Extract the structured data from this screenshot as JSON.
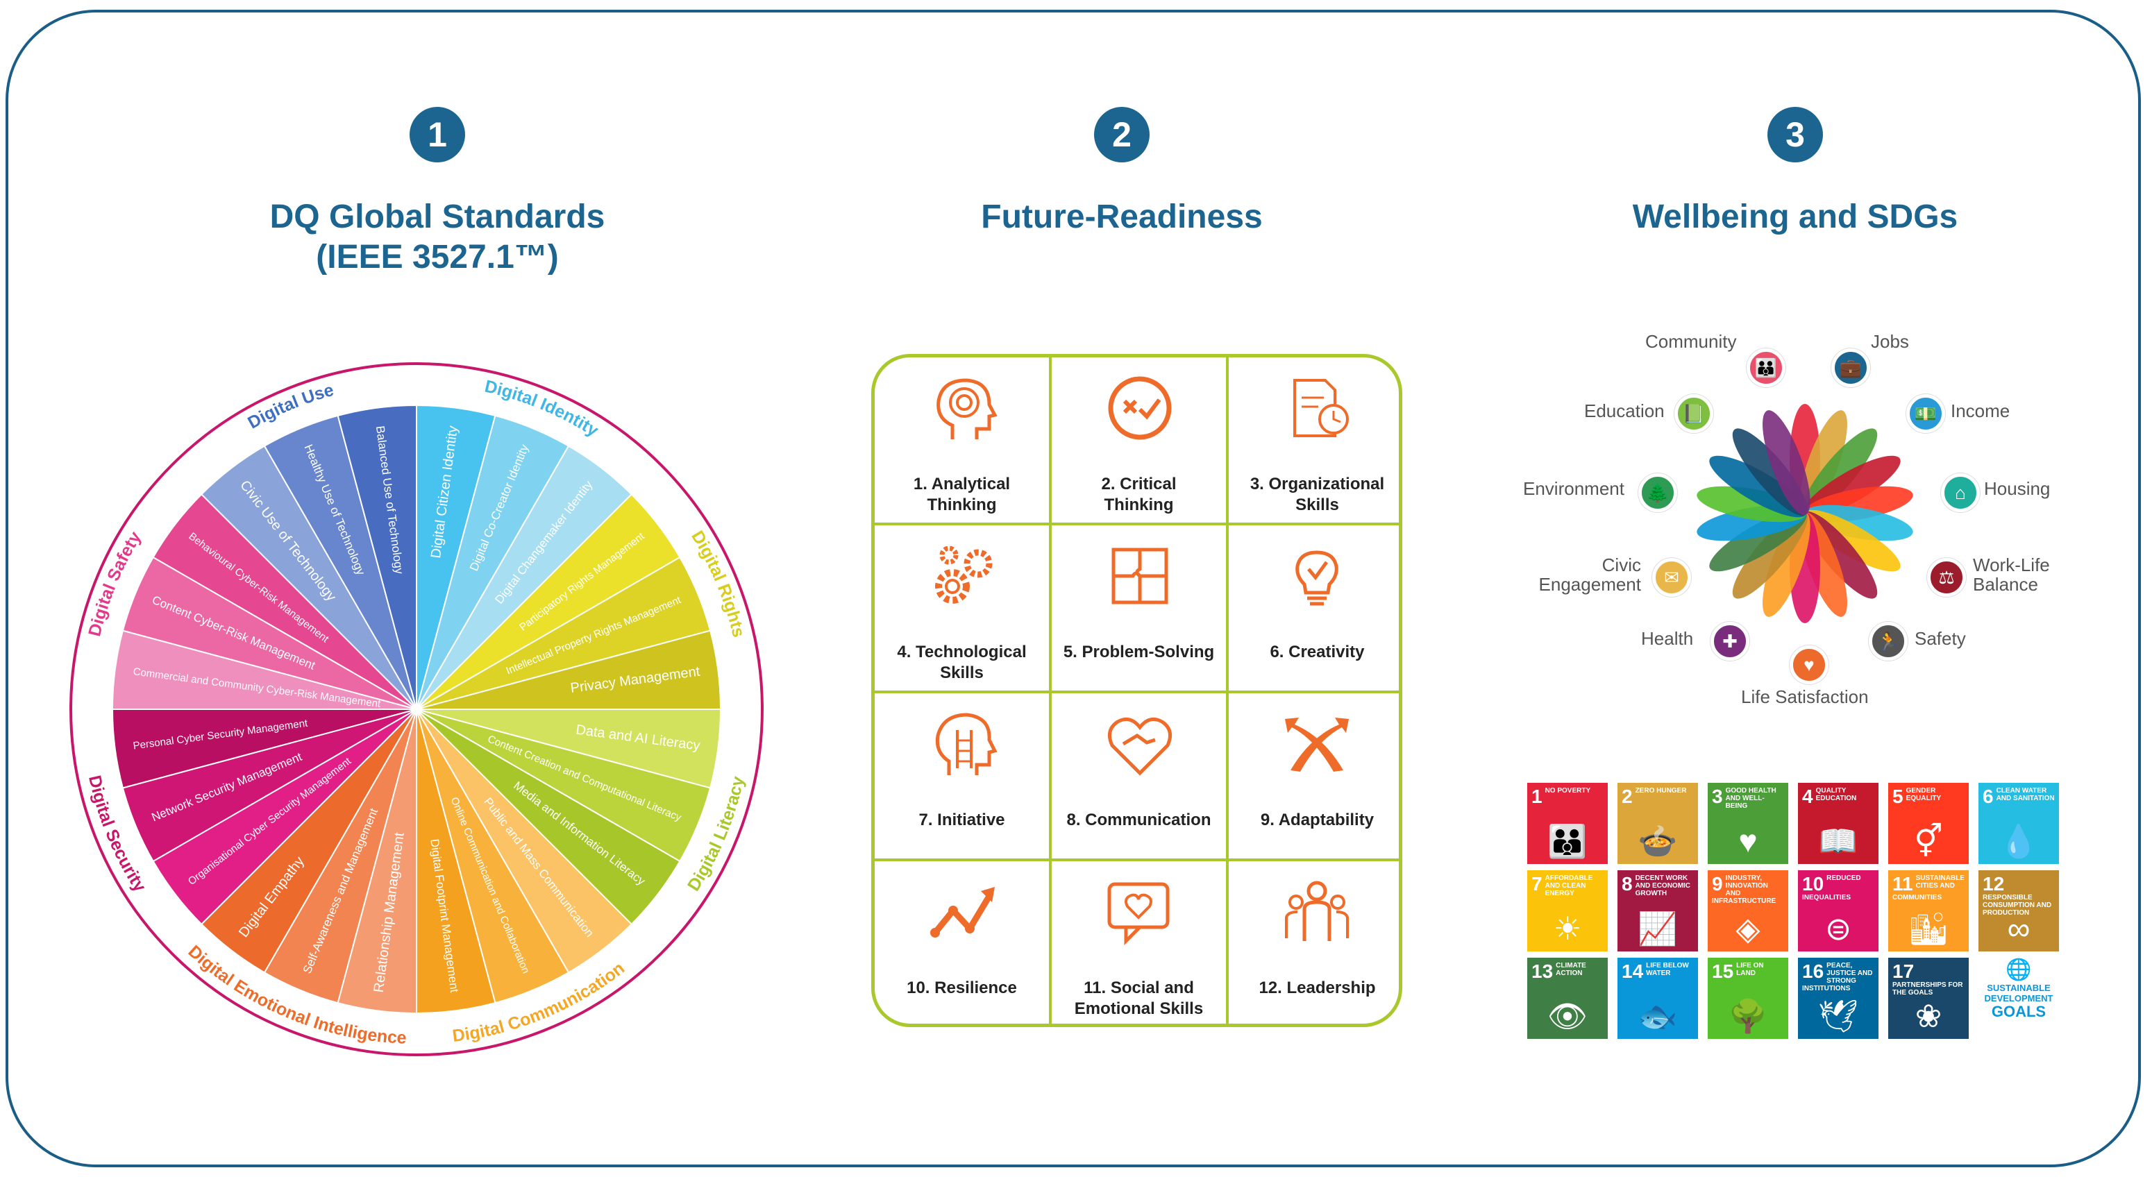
{
  "sections": [
    {
      "number": "1",
      "title_line1": "DQ Global Standards",
      "title_line2": "(IEEE 3527.1™)"
    },
    {
      "number": "2",
      "title_line1": "Future-Readiness",
      "title_line2": ""
    },
    {
      "number": "3",
      "title_line1": "Wellbeing and SDGs",
      "title_line2": ""
    }
  ],
  "wheel": {
    "categories": [
      {
        "name": "Digital Identity",
        "color": "#3fb6e6"
      },
      {
        "name": "Digital Rights",
        "color": "#d8cc1e"
      },
      {
        "name": "Digital Literacy",
        "color": "#a8c82b"
      },
      {
        "name": "Digital Communication",
        "color": "#f3a725"
      },
      {
        "name": "Digital Emotional Intelligence",
        "color": "#ee6b2a"
      },
      {
        "name": "Digital Security",
        "color": "#c8166a"
      },
      {
        "name": "Digital Safety",
        "color": "#e2398a"
      },
      {
        "name": "Digital Use",
        "color": "#3c6fbf"
      }
    ],
    "segments": [
      {
        "label": "Digital Citizen Identity",
        "color": "#48c3ef"
      },
      {
        "label": "Digital Co-Creator Identity",
        "color": "#7fd2f0"
      },
      {
        "label": "Digital Changemaker Identity",
        "color": "#a7def2"
      },
      {
        "label": "Participatory Rights Management",
        "color": "#ebe12a"
      },
      {
        "label": "Intellectual Property Rights Management",
        "color": "#ddd326"
      },
      {
        "label": "Privacy Management",
        "color": "#cfc41f"
      },
      {
        "label": "Data and AI Literacy",
        "color": "#d3e25c"
      },
      {
        "label": "Content Creation and Computational Literacy",
        "color": "#bcd43b"
      },
      {
        "label": "Media and Information Literacy",
        "color": "#a6c62a"
      },
      {
        "label": "Public and Mass Communication",
        "color": "#fbc266"
      },
      {
        "label": "Online Communication and Collaboration",
        "color": "#f8b13a"
      },
      {
        "label": "Digital Footprint Management",
        "color": "#f3a11f"
      },
      {
        "label": "Relationship Management",
        "color": "#f59b72"
      },
      {
        "label": "Self-Awareness and Management",
        "color": "#f18450"
      },
      {
        "label": "Digital Empathy",
        "color": "#ec6a2c"
      },
      {
        "label": "Organisational Cyber Security Management",
        "color": "#e11f86"
      },
      {
        "label": "Network Security Management",
        "color": "#cf1675"
      },
      {
        "label": "Personal Cyber Security Management",
        "color": "#b80f62"
      },
      {
        "label": "Commercial and Community Cyber-Risk Management",
        "color": "#ef8fbd"
      },
      {
        "label": "Content Cyber-Risk Management",
        "color": "#eb68a4"
      },
      {
        "label": "Behavioural Cyber-Risk Management",
        "color": "#e54790"
      },
      {
        "label": "Civic Use of Technology",
        "color": "#8aa3d9"
      },
      {
        "label": "Healthy Use of Technology",
        "color": "#6786cd"
      },
      {
        "label": "Balanced Use of Technology",
        "color": "#476cc0"
      }
    ]
  },
  "skills": [
    {
      "line1": "1. Analytical",
      "line2": "Thinking",
      "icon": "head-maze-icon"
    },
    {
      "line1": "2. Critical",
      "line2": "Thinking",
      "icon": "check-cross-icon"
    },
    {
      "line1": "3. Organizational",
      "line2": "Skills",
      "icon": "document-clock-icon"
    },
    {
      "line1": "4. Technological",
      "line2": "Skills",
      "icon": "gears-icon"
    },
    {
      "line1": "5. Problem-Solving",
      "line2": "",
      "icon": "puzzle-icon"
    },
    {
      "line1": "6. Creativity",
      "line2": "",
      "icon": "lightbulb-icon"
    },
    {
      "line1": "7. Initiative",
      "line2": "",
      "icon": "head-ladder-icon"
    },
    {
      "line1": "8. Communication",
      "line2": "",
      "icon": "handshake-heart-icon"
    },
    {
      "line1": "9. Adaptability",
      "line2": "",
      "icon": "crossing-arrows-icon"
    },
    {
      "line1": "10. Resilience",
      "line2": "",
      "icon": "rising-line-icon"
    },
    {
      "line1": "11. Social and",
      "line2": "Emotional Skills",
      "icon": "speech-heart-icon"
    },
    {
      "line1": "12. Leadership",
      "line2": "",
      "icon": "group-icon"
    }
  ],
  "wellbeing": [
    {
      "label": "Community",
      "color": "#e8506b",
      "glyph": "👪"
    },
    {
      "label": "Jobs",
      "color": "#1b6590",
      "glyph": "💼"
    },
    {
      "label": "Education",
      "color": "#7fbf3f",
      "glyph": "📗"
    },
    {
      "label": "Income",
      "color": "#2a9ad6",
      "glyph": "💵"
    },
    {
      "label": "Environment",
      "color": "#2e9b54",
      "glyph": "🌲"
    },
    {
      "label": "Housing",
      "color": "#1fae9b",
      "glyph": "⌂"
    },
    {
      "label": "Civic\nEngagement",
      "color": "#e9b64a",
      "glyph": "✉"
    },
    {
      "label": "Work-Life\nBalance",
      "color": "#9b1c2a",
      "glyph": "⚖"
    },
    {
      "label": "Health",
      "color": "#7a2d7d",
      "glyph": "✚"
    },
    {
      "label": "Safety",
      "color": "#555555",
      "glyph": "🏃"
    },
    {
      "label": "Life Satisfaction",
      "color": "#ec6a2c",
      "glyph": "♥"
    }
  ],
  "sdgs": [
    {
      "n": "1",
      "t": "No Poverty",
      "color": "#e5243b",
      "g": "👪"
    },
    {
      "n": "2",
      "t": "Zero Hunger",
      "color": "#dda63a",
      "g": "🍲"
    },
    {
      "n": "3",
      "t": "Good Health and Well-Being",
      "color": "#4c9f38",
      "g": "♥"
    },
    {
      "n": "4",
      "t": "Quality Education",
      "color": "#c5192d",
      "g": "📖"
    },
    {
      "n": "5",
      "t": "Gender Equality",
      "color": "#ff3a21",
      "g": "⚥"
    },
    {
      "n": "6",
      "t": "Clean Water and Sanitation",
      "color": "#26bde2",
      "g": "💧"
    },
    {
      "n": "7",
      "t": "Affordable and Clean Energy",
      "color": "#fcc30b",
      "g": "☀"
    },
    {
      "n": "8",
      "t": "Decent Work and Economic Growth",
      "color": "#a21942",
      "g": "📈"
    },
    {
      "n": "9",
      "t": "Industry, Innovation and Infrastructure",
      "color": "#fd6925",
      "g": "◈"
    },
    {
      "n": "10",
      "t": "Reduced Inequalities",
      "color": "#dd1367",
      "g": "⊜"
    },
    {
      "n": "11",
      "t": "Sustainable Cities and Communities",
      "color": "#fd9d24",
      "g": "🏙"
    },
    {
      "n": "12",
      "t": "Responsible Consumption and Production",
      "color": "#bf8b2e",
      "g": "∞"
    },
    {
      "n": "13",
      "t": "Climate Action",
      "color": "#3f7e44",
      "g": "👁"
    },
    {
      "n": "14",
      "t": "Life Below Water",
      "color": "#0a97d9",
      "g": "🐟"
    },
    {
      "n": "15",
      "t": "Life on Land",
      "color": "#56c02b",
      "g": "🌳"
    },
    {
      "n": "16",
      "t": "Peace, Justice and Strong Institutions",
      "color": "#00689d",
      "g": "🕊"
    },
    {
      "n": "17",
      "t": "Partnerships for the Goals",
      "color": "#19486a",
      "g": "❀"
    }
  ],
  "sdg_logo": {
    "line1": "SUSTAINABLE",
    "line2": "DEVELOPMENT",
    "line3": "GOALS"
  }
}
